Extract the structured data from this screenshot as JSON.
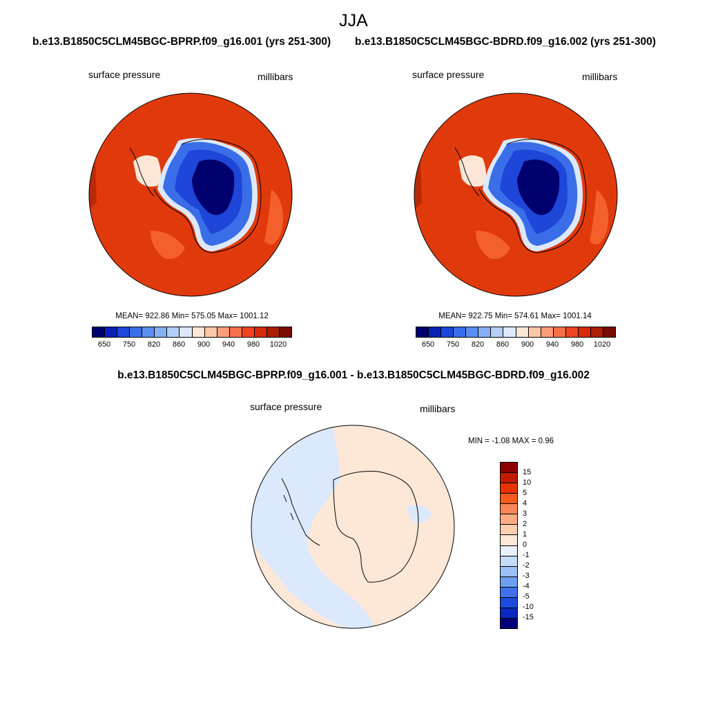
{
  "page": {
    "title": "JJA"
  },
  "chart_data": [
    {
      "type": "heatmap",
      "panel": "left",
      "case_title": "b.e13.B1850C5CLM45BGC-BPRP.f09_g16.001 (yrs 251-300)",
      "variable": "surface pressure",
      "units": "millibars",
      "stats": {
        "mean": 922.86,
        "min": 575.05,
        "max": 1001.12,
        "text": "MEAN= 922.86  Min= 575.05  Max= 1001.12"
      },
      "colorbar": {
        "levels": [
          650,
          700,
          750,
          800,
          820,
          840,
          860,
          880,
          900,
          920,
          940,
          960,
          980,
          1000,
          1020
        ],
        "tick_labels": [
          "650",
          "750",
          "820",
          "860",
          "900",
          "940",
          "980",
          "1020"
        ],
        "colors": [
          "#00006e",
          "#0a22b8",
          "#1e46d8",
          "#3a6ee8",
          "#5a8ef0",
          "#86b0f5",
          "#b4cef8",
          "#dce9fc",
          "#fde6d6",
          "#fcc6aa",
          "#fa9e78",
          "#f6704a",
          "#ee4420",
          "#d82a0a",
          "#aa1e06",
          "#7a0a02"
        ]
      }
    },
    {
      "type": "heatmap",
      "panel": "right",
      "case_title": "b.e13.B1850C5CLM45BGC-BDRD.f09_g16.002 (yrs 251-300)",
      "variable": "surface pressure",
      "units": "millibars",
      "stats": {
        "mean": 922.75,
        "min": 574.61,
        "max": 1001.14,
        "text": "MEAN= 922.75  Min= 574.61  Max= 1001.14"
      },
      "colorbar": {
        "levels": [
          650,
          700,
          750,
          800,
          820,
          840,
          860,
          880,
          900,
          920,
          940,
          960,
          980,
          1000,
          1020
        ],
        "tick_labels": [
          "650",
          "750",
          "820",
          "860",
          "900",
          "940",
          "980",
          "1020"
        ],
        "colors": [
          "#00006e",
          "#0a22b8",
          "#1e46d8",
          "#3a6ee8",
          "#5a8ef0",
          "#86b0f5",
          "#b4cef8",
          "#dce9fc",
          "#fde6d6",
          "#fcc6aa",
          "#fa9e78",
          "#f6704a",
          "#ee4420",
          "#d82a0a",
          "#aa1e06",
          "#7a0a02"
        ]
      }
    },
    {
      "type": "heatmap",
      "panel": "difference",
      "case_title": "b.e13.B1850C5CLM45BGC-BPRP.f09_g16.001 - b.e13.B1850C5CLM45BGC-BDRD.f09_g16.002",
      "variable": "surface pressure",
      "units": "millibars",
      "stats": {
        "min": -1.08,
        "max": 0.96,
        "text": "MIN =  -1.08 MAX =   0.96"
      },
      "colorbar": {
        "tick_labels": [
          "15",
          "10",
          "5",
          "4",
          "3",
          "2",
          "1",
          "0",
          "-1",
          "-2",
          "-3",
          "-4",
          "-5",
          "-10",
          "-15"
        ],
        "colors": [
          "#8c0000",
          "#c01a00",
          "#e83200",
          "#fb5a1e",
          "#fc8658",
          "#fcac84",
          "#fdcdb0",
          "#fde8d8",
          "#e6effa",
          "#c4dbf8",
          "#9cc0f6",
          "#709ff2",
          "#4270ec",
          "#1e4ae0",
          "#0a28c0",
          "#000078"
        ]
      }
    }
  ]
}
